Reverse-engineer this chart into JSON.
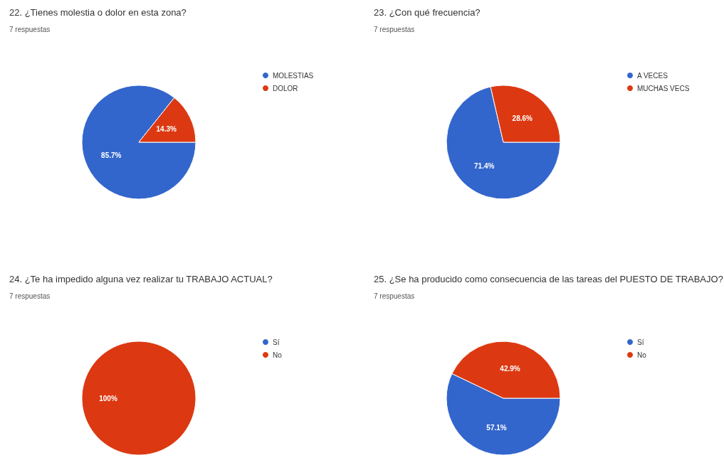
{
  "chart_data": [
    {
      "type": "pie",
      "title": "22. ¿Tienes molestia o dolor en esta zona?",
      "subtitle": "7 respuestas",
      "categories": [
        "MOLESTIAS",
        "DOLOR"
      ],
      "values": [
        85.7,
        14.3
      ],
      "colors": [
        "#3366cc",
        "#dc3912"
      ],
      "value_labels": [
        "85.7%",
        "14.3%"
      ],
      "legend": "right"
    },
    {
      "type": "pie",
      "title": "23. ¿Con qué frecuencia?",
      "subtitle": "7 respuestas",
      "categories": [
        "A VECES",
        "MUCHAS VECS"
      ],
      "values": [
        71.4,
        28.6
      ],
      "colors": [
        "#3366cc",
        "#dc3912"
      ],
      "value_labels": [
        "71.4%",
        "28.6%"
      ],
      "legend": "right"
    },
    {
      "type": "pie",
      "title": "24. ¿Te ha impedido alguna vez realizar tu TRABAJO ACTUAL?",
      "subtitle": "7 respuestas",
      "categories": [
        "Sí",
        "No"
      ],
      "values": [
        0,
        100
      ],
      "colors": [
        "#3366cc",
        "#dc3912"
      ],
      "value_labels": [
        null,
        "100%"
      ],
      "legend": "right"
    },
    {
      "type": "pie",
      "title": "25. ¿Se ha producido como consecuencia de las tareas del PUESTO DE TRABAJO?",
      "subtitle": "7 respuestas",
      "categories": [
        "Sí",
        "No"
      ],
      "values": [
        57.1,
        42.9
      ],
      "colors": [
        "#3366cc",
        "#dc3912"
      ],
      "value_labels": [
        "57.1%",
        "42.9%"
      ],
      "legend": "right"
    }
  ]
}
